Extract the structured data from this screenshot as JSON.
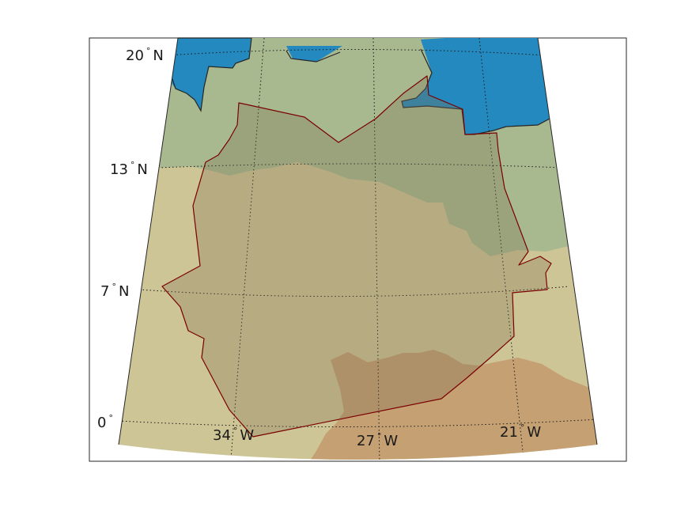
{
  "map": {
    "graticule": {
      "lat_labels": [
        {
          "deg": "20",
          "hemi": "N"
        },
        {
          "deg": "13",
          "hemi": "N"
        },
        {
          "deg": "7",
          "hemi": "N"
        },
        {
          "deg": "0",
          "hemi": ""
        }
      ],
      "lon_labels": [
        {
          "deg": "34",
          "hemi": "W"
        },
        {
          "deg": "27",
          "hemi": "W"
        },
        {
          "deg": "21",
          "hemi": "W"
        }
      ],
      "line_style": "dotted"
    },
    "colors": {
      "ocean": "#2389be",
      "land_green": "#a8b990",
      "land_tan": "#cec596",
      "land_brown": "#c5a073",
      "region_fill": "#7f6f52",
      "region_outline": "#7a0000",
      "frame": "#262626"
    }
  }
}
